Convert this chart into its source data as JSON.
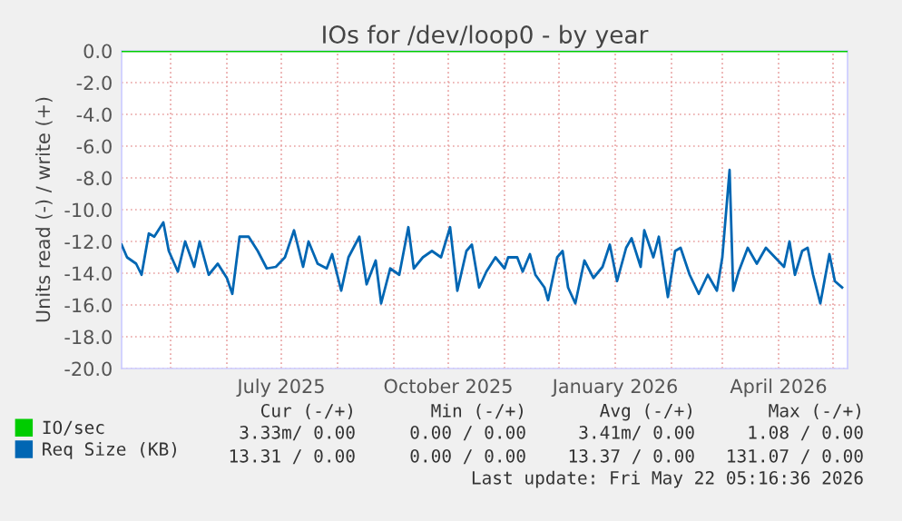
{
  "chart_data": {
    "type": "line",
    "title": "IOs for /dev/loop0 - by year",
    "ylabel": "Units read (-) / write (+)",
    "xlim": [
      "2025-04-04",
      "2026-05-09"
    ],
    "xticks": [
      {
        "value": "2025-05-01",
        "label": null
      },
      {
        "value": "2025-06-01",
        "label": null
      },
      {
        "value": "2025-07-01",
        "label": "July 2025"
      },
      {
        "value": "2025-08-01",
        "label": null
      },
      {
        "value": "2025-09-01",
        "label": null
      },
      {
        "value": "2025-10-01",
        "label": "October 2025"
      },
      {
        "value": "2025-11-01",
        "label": null
      },
      {
        "value": "2025-12-01",
        "label": null
      },
      {
        "value": "2026-01-01",
        "label": "January 2026"
      },
      {
        "value": "2026-02-01",
        "label": null
      },
      {
        "value": "2026-03-01",
        "label": null
      },
      {
        "value": "2026-04-01",
        "label": "April 2026"
      },
      {
        "value": "2026-05-01",
        "label": null
      }
    ],
    "ylim": [
      -20,
      0
    ],
    "yticks": [
      {
        "value": -20,
        "label": "-20.0"
      },
      {
        "value": -18,
        "label": "-18.0"
      },
      {
        "value": -16,
        "label": "-16.0"
      },
      {
        "value": -14,
        "label": "-14.0"
      },
      {
        "value": -12,
        "label": "-12.0"
      },
      {
        "value": -10,
        "label": "-10.0"
      },
      {
        "value": -8,
        "label": "-8.0"
      },
      {
        "value": -6,
        "label": "-6.0"
      },
      {
        "value": -4,
        "label": "-4.0"
      },
      {
        "value": -2,
        "label": "-2.0"
      },
      {
        "value": 0,
        "label": "0.0"
      }
    ],
    "grid": true,
    "legend": "bottom left",
    "series": [
      {
        "name": "IO/sec",
        "color": "#00cc00",
        "x": [
          "2025-04-04",
          "2026-05-09"
        ],
        "values": [
          0,
          0
        ]
      },
      {
        "name": "Req Size (KB)",
        "color": "#0066b3",
        "x": [
          "2025-04-04",
          "2025-04-07",
          "2025-04-12",
          "2025-04-15",
          "2025-04-19",
          "2025-04-22",
          "2025-04-27",
          "2025-04-30",
          "2025-05-05",
          "2025-05-09",
          "2025-05-14",
          "2025-05-17",
          "2025-05-22",
          "2025-05-27",
          "2025-06-01",
          "2025-06-04",
          "2025-06-08",
          "2025-06-13",
          "2025-06-18",
          "2025-06-23",
          "2025-06-28",
          "2025-07-03",
          "2025-07-08",
          "2025-07-13",
          "2025-07-16",
          "2025-07-21",
          "2025-07-26",
          "2025-07-29",
          "2025-08-03",
          "2025-08-07",
          "2025-08-13",
          "2025-08-17",
          "2025-08-22",
          "2025-08-25",
          "2025-08-30",
          "2025-09-04",
          "2025-09-09",
          "2025-09-12",
          "2025-09-17",
          "2025-09-22",
          "2025-09-27",
          "2025-10-02",
          "2025-10-06",
          "2025-10-11",
          "2025-10-14",
          "2025-10-18",
          "2025-10-22",
          "2025-10-27",
          "2025-11-01",
          "2025-11-03",
          "2025-11-08",
          "2025-11-11",
          "2025-11-15",
          "2025-11-18",
          "2025-11-23",
          "2025-11-25",
          "2025-11-30",
          "2025-12-03",
          "2025-12-06",
          "2025-12-10",
          "2025-12-15",
          "2025-12-20",
          "2025-12-25",
          "2025-12-29",
          "2026-01-02",
          "2026-01-07",
          "2026-01-10",
          "2026-01-15",
          "2026-01-17",
          "2026-01-22",
          "2026-01-25",
          "2026-01-30",
          "2026-02-03",
          "2026-02-06",
          "2026-02-11",
          "2026-02-16",
          "2026-02-21",
          "2026-02-26",
          "2026-03-01",
          "2026-03-05",
          "2026-03-07",
          "2026-03-10",
          "2026-03-15",
          "2026-03-20",
          "2026-03-25",
          "2026-03-30",
          "2026-04-04",
          "2026-04-07",
          "2026-04-10",
          "2026-04-14",
          "2026-04-17",
          "2026-04-20",
          "2026-04-24",
          "2026-04-29",
          "2026-05-02",
          "2026-05-06"
        ],
        "values": [
          -12.2,
          -13.0,
          -13.4,
          -14.1,
          -11.5,
          -11.7,
          -10.8,
          -12.6,
          -13.9,
          -12.0,
          -13.6,
          -12.0,
          -14.1,
          -13.4,
          -14.3,
          -15.3,
          -11.7,
          -11.7,
          -12.6,
          -13.7,
          -13.6,
          -13.0,
          -11.3,
          -13.6,
          -12.0,
          -13.4,
          -13.7,
          -12.8,
          -15.1,
          -13.0,
          -11.7,
          -14.7,
          -13.2,
          -15.9,
          -13.7,
          -14.1,
          -11.1,
          -13.7,
          -13.0,
          -12.6,
          -13.0,
          -11.1,
          -15.1,
          -12.6,
          -12.2,
          -14.9,
          -13.9,
          -13.0,
          -13.7,
          -13.0,
          -13.0,
          -13.9,
          -12.8,
          -14.1,
          -14.9,
          -15.7,
          -13.0,
          -12.6,
          -14.9,
          -15.9,
          -13.2,
          -14.3,
          -13.6,
          -12.2,
          -14.5,
          -12.4,
          -11.8,
          -13.6,
          -11.3,
          -13.0,
          -11.7,
          -15.5,
          -12.6,
          -12.4,
          -14.1,
          -15.3,
          -14.1,
          -15.1,
          -13.0,
          -7.5,
          -15.1,
          -13.9,
          -12.4,
          -13.4,
          -12.4,
          -13.0,
          -13.6,
          -12.0,
          -14.1,
          -12.6,
          -12.4,
          -14.1,
          -15.9,
          -12.8,
          -14.5,
          -14.9
        ]
      }
    ],
    "annotations": [
      "Cur (-/+)",
      "Min (-/+)",
      "Avg (-/+)",
      "Max (-/+)",
      "3.33m/ 0.00",
      "0.00 / 0.00",
      "3.41m/ 0.00",
      "1.08 / 0.00",
      "13.31 / 0.00",
      "0.00 / 0.00",
      "13.37 / 0.00",
      "131.07 / 0.00",
      "Last update: Fri May 22 05:16:36 2026"
    ]
  }
}
